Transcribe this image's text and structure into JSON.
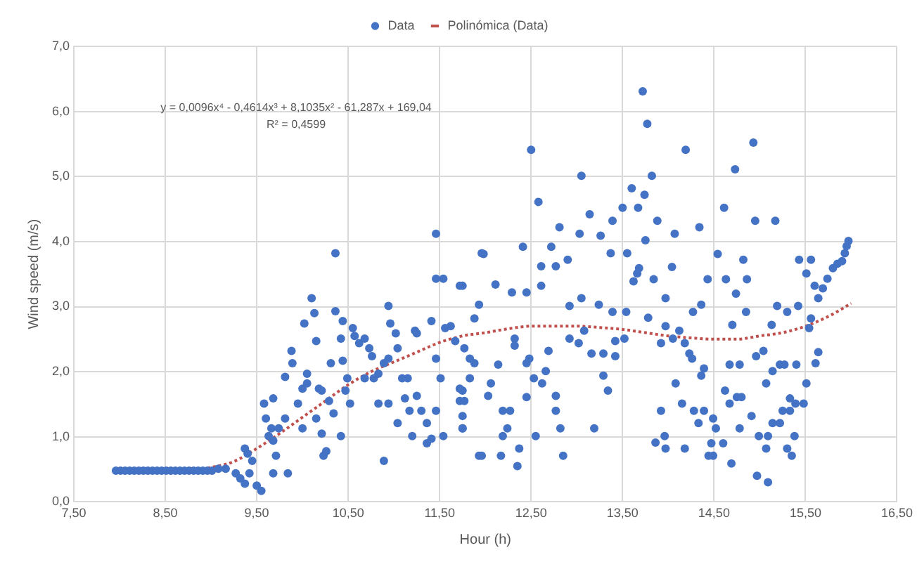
{
  "chart_data": {
    "type": "scatter",
    "xlabel": "Hour (h)",
    "ylabel": "Wind speed (m/s)",
    "xlim": [
      7.5,
      16.5
    ],
    "ylim": [
      0,
      7
    ],
    "xticks": [
      {
        "value": 7.5,
        "label": "7,50"
      },
      {
        "value": 8.5,
        "label": "8,50"
      },
      {
        "value": 9.5,
        "label": "9,50"
      },
      {
        "value": 10.5,
        "label": "10,50"
      },
      {
        "value": 11.5,
        "label": "11,50"
      },
      {
        "value": 12.5,
        "label": "12,50"
      },
      {
        "value": 13.5,
        "label": "13,50"
      },
      {
        "value": 14.5,
        "label": "14,50"
      },
      {
        "value": 15.5,
        "label": "15,50"
      },
      {
        "value": 16.5,
        "label": "16,50"
      }
    ],
    "yticks": [
      {
        "value": 0,
        "label": "0,0"
      },
      {
        "value": 1,
        "label": "1,0"
      },
      {
        "value": 2,
        "label": "2,0"
      },
      {
        "value": 3,
        "label": "3,0"
      },
      {
        "value": 4,
        "label": "4,0"
      },
      {
        "value": 5,
        "label": "5,0"
      },
      {
        "value": 6,
        "label": "6,0"
      },
      {
        "value": 7,
        "label": "7,0"
      }
    ],
    "grid": true,
    "legend": "top",
    "annotations": [
      "y = 0,0096x⁴ - 0,4614x³ + 8,1035x² - 61,287x + 169,04",
      "R² = 0,4599"
    ],
    "series": [
      {
        "name": "Data",
        "marker": "circle",
        "color": "#4472c4",
        "x": [
          7.96,
          8.01,
          8.06,
          8.11,
          8.16,
          8.21,
          8.26,
          8.31,
          8.36,
          8.41,
          8.46,
          8.51,
          8.56,
          8.61,
          8.66,
          8.71,
          8.76,
          8.81,
          8.86,
          8.91,
          8.96,
          9.01,
          9.08,
          9.16,
          9.27,
          9.32,
          9.37,
          9.42,
          9.4,
          9.37,
          9.45,
          9.5,
          9.55,
          9.68,
          9.84,
          9.71,
          9.6,
          9.58,
          9.68,
          9.66,
          9.74,
          9.68,
          9.63,
          9.81,
          9.81,
          9.89,
          9.88,
          9.95,
          10.0,
          10.0,
          10.05,
          10.05,
          10.02,
          10.1,
          10.13,
          10.15,
          10.18,
          10.21,
          10.15,
          10.21,
          10.26,
          10.23,
          10.29,
          10.34,
          10.31,
          10.36,
          10.36,
          10.42,
          10.42,
          10.44,
          10.47,
          10.44,
          10.55,
          10.57,
          10.62,
          10.68,
          10.73,
          10.76,
          10.78,
          10.83,
          10.89,
          10.94,
          10.94,
          10.96,
          11.02,
          11.04,
          11.09,
          11.15,
          11.25,
          11.23,
          11.25,
          11.3,
          11.36,
          11.41,
          11.46,
          11.51,
          11.46,
          11.41,
          11.46,
          11.54,
          11.56,
          11.62,
          11.72,
          11.75,
          11.77,
          11.75,
          11.54,
          11.36,
          11.2,
          11.04,
          10.89,
          11.17,
          11.12,
          10.94,
          10.83,
          10.52,
          10.49,
          10.68,
          11.46,
          11.83,
          11.88,
          11.96,
          11.93,
          11.67,
          11.77,
          11.88,
          11.83,
          11.72,
          11.72,
          11.75,
          11.75,
          11.96,
          12.17,
          12.35,
          12.37,
          12.19,
          12.24,
          12.19,
          12.27,
          12.06,
          12.03,
          12.14,
          12.32,
          12.32,
          12.48,
          12.45,
          12.53,
          12.45,
          12.55,
          12.69,
          12.66,
          12.62,
          12.77,
          12.77,
          12.82,
          12.85,
          12.92,
          13.08,
          13.02,
          13.16,
          13.29,
          13.19,
          13.29,
          13.34,
          13.42,
          13.52,
          13.42,
          13.92,
          13.97,
          14.05,
          14.12,
          14.18,
          14.23,
          14.26,
          14.39,
          14.36,
          14.08,
          13.92,
          13.86,
          13.96,
          13.97,
          14.15,
          14.18,
          14.28,
          14.39,
          14.33,
          14.49,
          14.52,
          14.6,
          14.47,
          14.49,
          14.44,
          14.69,
          14.62,
          14.67,
          14.75,
          14.8,
          14.78,
          14.67,
          14.78,
          14.96,
          15.04,
          14.91,
          14.99,
          15.09,
          15.07,
          14.97,
          15.09,
          15.07,
          15.14,
          15.22,
          15.27,
          15.4,
          15.14,
          15.22,
          15.25,
          15.33,
          15.33,
          15.39,
          15.38,
          15.3,
          15.35,
          15.48,
          15.51,
          13.72,
          13.77,
          12.5,
          14.93,
          14.19,
          14.73,
          12.58,
          13.05,
          13.82,
          13.6,
          13.74,
          13.14,
          13.5,
          13.67,
          13.39,
          13.26,
          12.81,
          13.03,
          12.72,
          12.41,
          11.98,
          11.75,
          12.61,
          12.77,
          12.9,
          13.37,
          13.55,
          13.68,
          13.75,
          13.88,
          14.07,
          14.34,
          14.61,
          14.54,
          14.82,
          14.95,
          15.17,
          14.04,
          13.62,
          13.66,
          13.84,
          12.29,
          12.45,
          12.11,
          12.61,
          12.92,
          13.24,
          13.05,
          13.39,
          13.54,
          11.93,
          13.78,
          13.97,
          14.27,
          14.36,
          14.43,
          14.63,
          14.86,
          14.74,
          14.85,
          14.7,
          15.19,
          15.3,
          15.42,
          15.13,
          15.43,
          15.56,
          15.51,
          15.6,
          15.64,
          15.69,
          15.74,
          15.8,
          15.85,
          15.9,
          15.93,
          15.95,
          15.97,
          15.56,
          15.54,
          15.64,
          15.61
        ],
        "values": [
          0.48,
          0.48,
          0.48,
          0.48,
          0.48,
          0.48,
          0.48,
          0.48,
          0.48,
          0.48,
          0.48,
          0.48,
          0.48,
          0.48,
          0.48,
          0.48,
          0.48,
          0.48,
          0.48,
          0.48,
          0.48,
          0.48,
          0.51,
          0.51,
          0.44,
          0.36,
          0.28,
          0.44,
          0.74,
          0.82,
          0.63,
          0.25,
          0.17,
          0.44,
          0.44,
          0.71,
          1.28,
          1.51,
          1.59,
          1.13,
          1.13,
          0.94,
          1.01,
          1.28,
          1.92,
          2.13,
          2.32,
          1.51,
          1.13,
          1.74,
          1.82,
          1.97,
          2.74,
          3.13,
          2.9,
          2.47,
          1.74,
          1.71,
          1.28,
          1.05,
          0.78,
          0.71,
          1.55,
          1.36,
          2.13,
          2.93,
          3.82,
          2.51,
          1.01,
          2.17,
          1.71,
          2.78,
          2.67,
          2.55,
          2.44,
          2.51,
          2.36,
          2.24,
          1.9,
          1.97,
          2.13,
          3.01,
          2.2,
          2.74,
          2.59,
          2.36,
          1.9,
          1.9,
          2.59,
          2.63,
          1.63,
          1.4,
          1.21,
          0.97,
          1.4,
          1.9,
          2.2,
          2.78,
          3.43,
          3.43,
          2.67,
          2.7,
          3.32,
          1.71,
          1.55,
          1.13,
          1.01,
          0.9,
          1.01,
          1.21,
          0.63,
          1.4,
          1.59,
          1.51,
          1.51,
          1.51,
          1.9,
          1.9,
          4.12,
          2.2,
          2.82,
          3.82,
          0.71,
          2.47,
          2.36,
          2.13,
          1.9,
          1.74,
          1.55,
          1.32,
          1.13,
          0.71,
          0.71,
          0.55,
          0.82,
          1.01,
          1.13,
          1.4,
          1.4,
          1.82,
          1.63,
          2.11,
          2.51,
          2.4,
          2.2,
          2.13,
          1.9,
          1.61,
          1.01,
          2.32,
          2.01,
          1.82,
          1.63,
          1.4,
          1.13,
          0.71,
          2.51,
          2.63,
          2.44,
          2.28,
          2.28,
          1.13,
          1.94,
          1.71,
          2.47,
          2.51,
          2.24,
          2.44,
          2.7,
          2.51,
          2.63,
          2.44,
          2.28,
          2.2,
          2.05,
          1.94,
          1.82,
          1.4,
          0.91,
          1.01,
          0.82,
          1.51,
          0.82,
          1.4,
          1.4,
          1.21,
          1.28,
          1.13,
          0.9,
          0.9,
          0.71,
          0.71,
          0.59,
          1.71,
          1.51,
          1.61,
          1.61,
          1.13,
          2.11,
          2.11,
          2.24,
          2.32,
          1.32,
          1.01,
          1.01,
          0.82,
          0.4,
          0.3,
          1.82,
          2.01,
          2.11,
          2.11,
          2.11,
          1.21,
          1.21,
          1.4,
          1.59,
          1.4,
          1.51,
          1.01,
          0.82,
          0.71,
          1.51,
          1.82,
          6.31,
          5.81,
          5.41,
          5.52,
          5.41,
          5.11,
          4.61,
          5.01,
          5.01,
          4.82,
          4.72,
          4.42,
          4.52,
          4.52,
          4.32,
          4.09,
          4.22,
          4.12,
          3.92,
          3.92,
          3.81,
          3.32,
          3.62,
          3.62,
          3.72,
          3.82,
          3.82,
          3.59,
          4.02,
          4.32,
          4.12,
          4.22,
          4.52,
          3.81,
          3.72,
          4.32,
          4.32,
          3.61,
          3.39,
          3.51,
          3.42,
          3.22,
          3.22,
          3.34,
          3.32,
          3.01,
          3.03,
          3.13,
          2.92,
          2.92,
          3.03,
          2.83,
          3.13,
          2.92,
          3.03,
          3.42,
          3.42,
          3.42,
          3.2,
          2.92,
          2.72,
          3.01,
          2.92,
          3.01,
          2.72,
          3.72,
          3.72,
          3.51,
          3.32,
          3.13,
          3.28,
          3.43,
          3.59,
          3.66,
          3.7,
          3.82,
          3.93,
          4.01,
          2.82,
          2.67,
          2.3,
          2.13
        ]
      },
      {
        "name": "Polinómica (Data)",
        "type": "line",
        "marker": "none",
        "color": "#c0504d",
        "line_style": "dotted",
        "x": [
          8.9,
          9.25,
          9.5,
          9.75,
          10.0,
          10.25,
          10.5,
          10.75,
          11.0,
          11.25,
          11.5,
          11.75,
          12.0,
          12.25,
          12.5,
          12.75,
          13.0,
          13.25,
          13.5,
          13.75,
          14.0,
          14.25,
          14.5,
          14.75,
          15.0,
          15.25,
          15.5,
          15.75,
          16.0
        ],
        "values": [
          0.5,
          0.62,
          0.82,
          1.05,
          1.3,
          1.55,
          1.8,
          2.0,
          2.15,
          2.3,
          2.45,
          2.55,
          2.6,
          2.66,
          2.7,
          2.7,
          2.7,
          2.68,
          2.65,
          2.6,
          2.55,
          2.52,
          2.5,
          2.5,
          2.55,
          2.6,
          2.7,
          2.85,
          3.05
        ]
      }
    ]
  }
}
